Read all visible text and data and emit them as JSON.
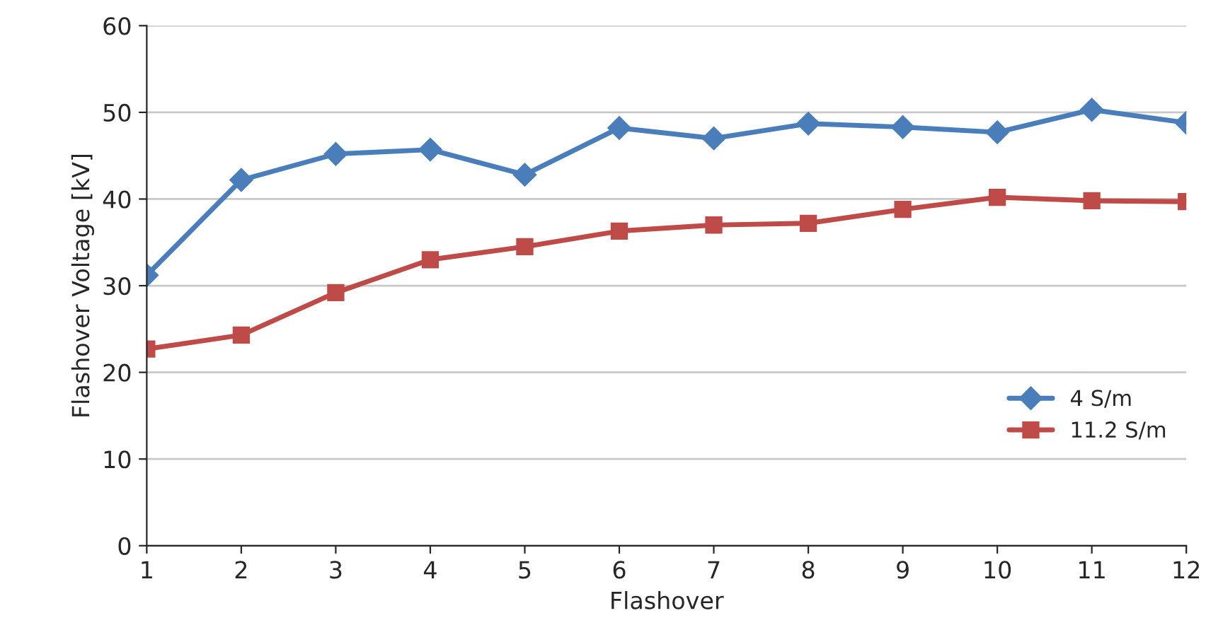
{
  "chart_data": {
    "type": "line",
    "xlabel": "Flashover",
    "ylabel": "Flashover Voltage [kV]",
    "x": [
      1,
      2,
      3,
      4,
      5,
      6,
      7,
      8,
      9,
      10,
      11,
      12
    ],
    "series": [
      {
        "name": "4 S/m",
        "color": "#4a7ebb",
        "marker": "diamond",
        "values": [
          31.2,
          42.2,
          45.2,
          45.7,
          42.8,
          48.2,
          47,
          48.7,
          48.3,
          47.7,
          50.3,
          48.8
        ]
      },
      {
        "name": "11.2 S/m",
        "color": "#be4b48",
        "marker": "square",
        "values": [
          22.7,
          24.3,
          29.2,
          33,
          34.5,
          36.3,
          37,
          37.2,
          38.8,
          40.2,
          39.8,
          39.7
        ]
      }
    ],
    "xlim": [
      1,
      12
    ],
    "xticks": [
      1,
      2,
      3,
      4,
      5,
      6,
      7,
      8,
      9,
      10,
      11,
      12
    ],
    "ylim": [
      0,
      60
    ],
    "yticks": [
      0,
      10,
      20,
      30,
      40,
      50,
      60
    ],
    "grid": "y",
    "legend": "right"
  }
}
